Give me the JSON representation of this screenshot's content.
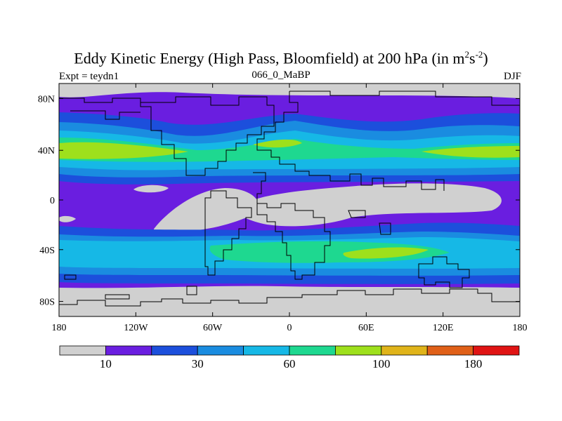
{
  "title": {
    "prefix": "Eddy Kinetic Energy (High Pass, Bloomfield) at 200 hPa (in m",
    "sup1": "2",
    "mid": "s",
    "sup2": "-2",
    "suffix": ")"
  },
  "subtitle": "066_0_MaBP",
  "left_label": "Expt = teydn1",
  "right_label": "DJF",
  "lat_ticks": [
    {
      "label": "80N",
      "lat": 80
    },
    {
      "label": "40N",
      "lat": 40
    },
    {
      "label": "0",
      "lat": 0
    },
    {
      "label": "40S",
      "lat": -40
    },
    {
      "label": "80S",
      "lat": -80
    }
  ],
  "lon_ticks": [
    {
      "label": "180",
      "lon": -180
    },
    {
      "label": "120W",
      "lon": -120
    },
    {
      "label": "60W",
      "lon": -60
    },
    {
      "label": "0",
      "lon": 0
    },
    {
      "label": "60E",
      "lon": 60
    },
    {
      "label": "120E",
      "lon": 120
    },
    {
      "label": "180",
      "lon": 180
    }
  ],
  "colorbar": {
    "colors": [
      "#d0d0d0",
      "#6a1ee0",
      "#1c4fdc",
      "#1a8ce0",
      "#16b8e6",
      "#1ed890",
      "#9ee01c",
      "#e0b41a",
      "#e06018",
      "#e01414"
    ],
    "labels": [
      {
        "text": "10",
        "boundary": 1
      },
      {
        "text": "30",
        "boundary": 3
      },
      {
        "text": "60",
        "boundary": 5
      },
      {
        "text": "100",
        "boundary": 7
      },
      {
        "text": "180",
        "boundary": 9
      }
    ]
  }
}
